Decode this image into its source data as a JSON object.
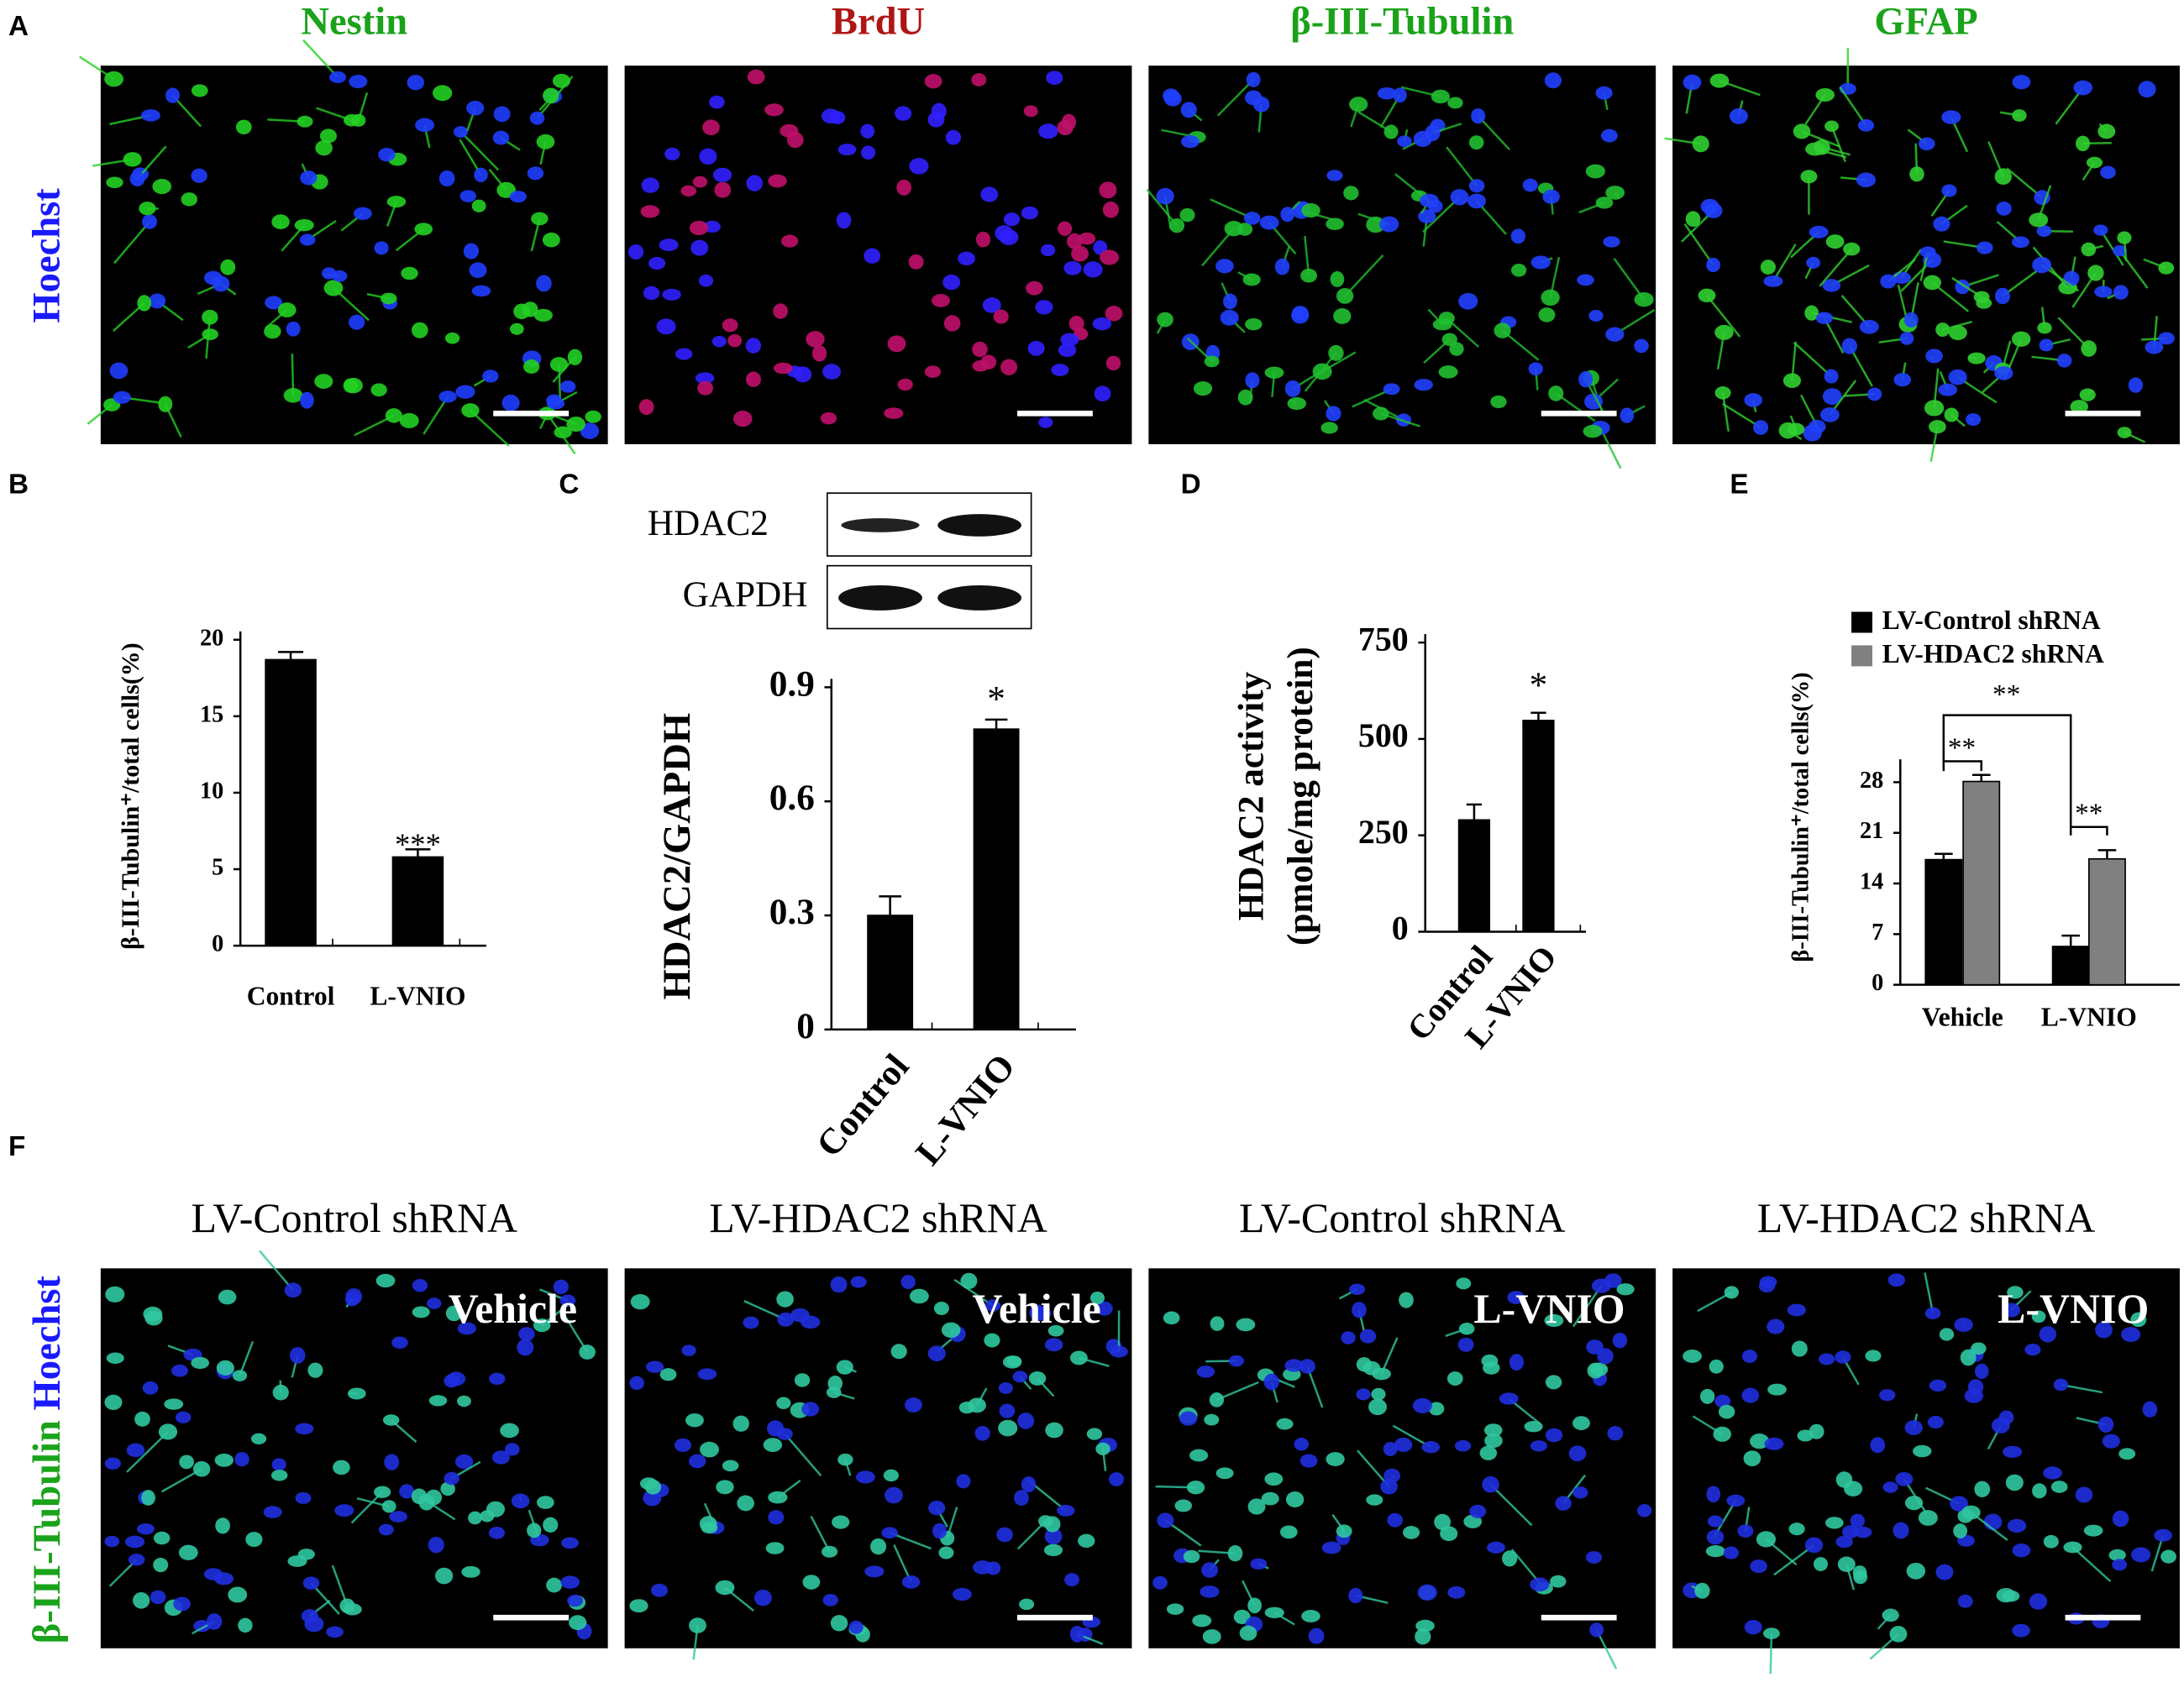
{
  "panel_letters": [
    "A",
    "B",
    "C",
    "D",
    "E",
    "F"
  ],
  "panel_a": {
    "row_label": "Hoechst",
    "columns": [
      "Nestin",
      "BrdU",
      "β-III-Tubulin",
      "GFAP"
    ]
  },
  "panel_c_blot": {
    "labels": [
      "HDAC2",
      "GAPDH"
    ]
  },
  "panel_f": {
    "row_label_green": "β-III-Tubulin",
    "row_label_blue": "Hoechst",
    "columns": [
      "LV-Control shRNA",
      "LV-HDAC2 shRNA",
      "LV-Control shRNA",
      "LV-HDAC2 shRNA"
    ],
    "conditions": [
      "Vehicle",
      "Vehicle",
      "L-VNIO",
      "L-VNIO"
    ]
  },
  "chart_data": [
    {
      "type": "bar",
      "y_label": "β-III-Tubulin⁺/total cells(%)",
      "categories": [
        "Control",
        "L-VNIO"
      ],
      "values": [
        18.7,
        5.8
      ],
      "errors": [
        0.5,
        0.5
      ],
      "color": "#000000",
      "ylim": [
        0,
        20
      ],
      "yticks": [
        0,
        5,
        10,
        15,
        20
      ],
      "annotations": [
        "***"
      ]
    },
    {
      "type": "bar",
      "y_label": "HDAC2/GAPDH",
      "categories": [
        "Control",
        "L-VNIO"
      ],
      "values": [
        0.3,
        0.79
      ],
      "errors": [
        0.05,
        0.025
      ],
      "color": "#000000",
      "ylim": [
        0,
        0.9
      ],
      "yticks": [
        0,
        0.3,
        0.6,
        0.9
      ],
      "annotations": [
        "*"
      ]
    },
    {
      "type": "bar",
      "y_label": [
        "HDAC2 activity",
        "(pmole/mg protein)"
      ],
      "categories": [
        "Control",
        "L-VNIO"
      ],
      "values": [
        290,
        548
      ],
      "errors": [
        40,
        20
      ],
      "color": "#000000",
      "ylim": [
        0,
        750
      ],
      "yticks": [
        0,
        250,
        500,
        750
      ],
      "annotations": [
        "*"
      ]
    },
    {
      "type": "grouped_bar",
      "y_label": "β-III-Tubulin⁺/total cells(%)",
      "categories": [
        "Vehicle",
        "L-VNIO"
      ],
      "series": [
        {
          "name": "LV-Control shRNA",
          "color": "#000000",
          "values": [
            17.3,
            5.3
          ],
          "errors": [
            0.8,
            1.5
          ]
        },
        {
          "name": "LV-HDAC2 shRNA",
          "color": "#808080",
          "values": [
            28.1,
            17.4
          ],
          "errors": [
            0.9,
            1.2
          ]
        }
      ],
      "ylim": [
        0,
        30
      ],
      "yticks": [
        0,
        7,
        14,
        21,
        28
      ],
      "annotations": [
        "**",
        "**",
        "**"
      ]
    }
  ]
}
